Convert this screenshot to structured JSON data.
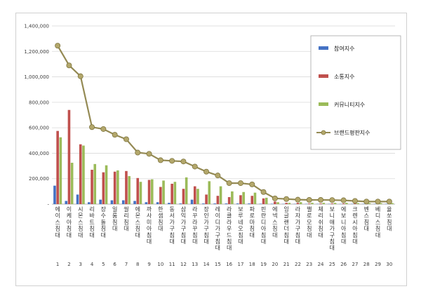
{
  "chart_data": {
    "type": "bar",
    "ylim": [
      0,
      1400000
    ],
    "yticks": [
      0,
      200000,
      400000,
      600000,
      800000,
      1000000,
      1200000,
      1400000
    ],
    "ytick_labels": [
      "-",
      "200,000",
      "400,000",
      "600,000",
      "800,000",
      "1,000,000",
      "1,200,000",
      "1,400,000"
    ],
    "grid": true,
    "legend_position": "right",
    "categories": [
      "에이스침대",
      "이케아침대",
      "시몬스침대",
      "리바트침대",
      "장수돌침대",
      "일룸침대",
      "씰리침대",
      "에몬스침대",
      "까사미아침대",
      "한샘침대",
      "동서가구침대",
      "삼익가구침대",
      "라꾸라꾸침대",
      "장인가구침대",
      "레이디가구침대",
      "라클라우드침대",
      "보루네오침대",
      "파로마침대",
      "핀란디아침대",
      "에넥스침대",
      "잉글랜더침대",
      "라자가구침대",
      "밸로모침대",
      "체리쉬침대",
      "보니애가구침대",
      "에보니아침대",
      "크렌시아침대",
      "벤스침대",
      "베디스침대",
      "율쏘침대"
    ],
    "ranks": [
      "1",
      "2",
      "3",
      "4",
      "5",
      "6",
      "7",
      "8",
      "9",
      "10",
      "11",
      "12",
      "13",
      "14",
      "15",
      "16",
      "17",
      "18",
      "19",
      "20",
      "21",
      "22",
      "23",
      "24",
      "25",
      "26",
      "27",
      "28",
      "29",
      "30"
    ],
    "series": [
      {
        "name": "참여지수",
        "kind": "bar",
        "color": "#4472c4",
        "values": [
          145000,
          25000,
          75000,
          15000,
          35000,
          30000,
          30000,
          25000,
          15000,
          15000,
          10000,
          5000,
          35000,
          5000,
          5000,
          5000,
          5000,
          5000,
          3000,
          3000,
          2000,
          2000,
          2000,
          2000,
          2000,
          2000,
          2000,
          2000,
          2000,
          2000
        ]
      },
      {
        "name": "소통지수",
        "kind": "bar",
        "color": "#c0504d",
        "values": [
          575000,
          740000,
          470000,
          270000,
          250000,
          255000,
          260000,
          205000,
          190000,
          135000,
          160000,
          120000,
          140000,
          75000,
          65000,
          55000,
          70000,
          65000,
          45000,
          20000,
          10000,
          10000,
          5000,
          5000,
          5000,
          5000,
          5000,
          5000,
          5000,
          5000
        ]
      },
      {
        "name": "커뮤니티지수",
        "kind": "bar",
        "color": "#9bbb59",
        "values": [
          525000,
          325000,
          460000,
          315000,
          305000,
          265000,
          220000,
          175000,
          195000,
          185000,
          175000,
          210000,
          120000,
          180000,
          140000,
          100000,
          95000,
          90000,
          50000,
          15000,
          10000,
          15000,
          10000,
          10000,
          10000,
          10000,
          8000,
          8000,
          8000,
          8000
        ]
      },
      {
        "name": "브랜드평판지수",
        "kind": "line",
        "color": "#948a54",
        "values": [
          1245000,
          1090000,
          1005000,
          605000,
          590000,
          545000,
          510000,
          405000,
          395000,
          345000,
          340000,
          335000,
          295000,
          255000,
          225000,
          165000,
          165000,
          155000,
          95000,
          45000,
          40000,
          35000,
          33000,
          33000,
          32000,
          30000,
          25000,
          20000,
          20000,
          20000
        ]
      }
    ]
  }
}
